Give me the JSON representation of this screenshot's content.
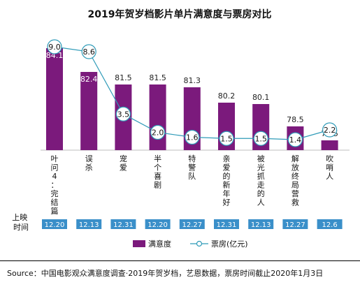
{
  "chart_data": {
    "type": "bar",
    "title": "2019年贺岁档影片单片满意度与票房对比",
    "categories": [
      "叶问4：完结篇",
      "误杀",
      "宠爱",
      "半个喜剧",
      "特警队",
      "亲爱的新年好",
      "被光抓走的人",
      "解放终局营救",
      "吹哨人"
    ],
    "series": [
      {
        "name": "满意度",
        "type": "bar",
        "values": [
          84.1,
          82.4,
          81.5,
          81.5,
          81.3,
          80.2,
          80.1,
          78.5,
          77.5
        ]
      },
      {
        "name": "票房(亿元)",
        "type": "line",
        "values": [
          9.0,
          8.6,
          3.5,
          2.0,
          1.6,
          1.5,
          1.5,
          1.4,
          2.2
        ]
      }
    ],
    "satisfaction_labels": [
      "84.1",
      "82.4",
      "81.5",
      "81.5",
      "81.3",
      "80.2",
      "80.1",
      "78.5",
      "77.5"
    ],
    "boxoffice_labels": [
      "9.0",
      "8.6",
      "3.5",
      "2.0",
      "1.6",
      "1.5",
      "1.5",
      "1.4",
      "2.2"
    ],
    "release_label": "上映时间",
    "release_dates": [
      "12.20",
      "12.13",
      "12.31",
      "12.20",
      "12.27",
      "12.31",
      "12.13",
      "12.27",
      "12.6"
    ],
    "legend_position": "bottom",
    "colors": {
      "bar": "#7b1a7c",
      "line": "#2f9bb8",
      "marker_fill": "#ffffff",
      "date_box": "#3a8fc9"
    }
  },
  "source": "Source：中国电影观众满意度调查·2019年贺岁档，艺恩数据，票房时间截止2020年1月3日"
}
